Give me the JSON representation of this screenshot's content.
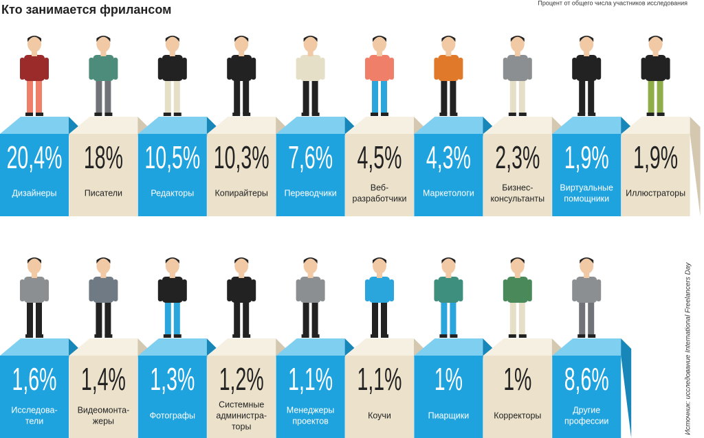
{
  "header": {
    "title": "Кто занимается фрилансом",
    "subtitle": "Процент от общего числа участников исследования"
  },
  "source": "Источник: исследование International Freelancers Day",
  "rows": [
    [
      {
        "value": "20,4%",
        "label": [
          "Дизайнеры"
        ]
      },
      {
        "value": "18%",
        "label": [
          "Писатели"
        ]
      },
      {
        "value": "10,5%",
        "label": [
          "Редакторы"
        ]
      },
      {
        "value": "10,3%",
        "label": [
          "Копирайтеры"
        ]
      },
      {
        "value": "7,6%",
        "label": [
          "Переводчики"
        ]
      },
      {
        "value": "4,5%",
        "label": [
          "Веб-",
          "разработчики"
        ]
      },
      {
        "value": "4,3%",
        "label": [
          "Маркетологи"
        ]
      },
      {
        "value": "2,3%",
        "label": [
          "Бизнес-",
          "консультанты"
        ]
      },
      {
        "value": "1,9%",
        "label": [
          "Виртуальные",
          "помощники"
        ]
      },
      {
        "value": "1,9%",
        "label": [
          "Иллюстраторы"
        ]
      }
    ],
    [
      {
        "value": "1,6%",
        "label": [
          "Исследова-",
          "тели"
        ]
      },
      {
        "value": "1,4%",
        "label": [
          "Видеомонта-",
          "жеры"
        ]
      },
      {
        "value": "1,3%",
        "label": [
          "Фотографы"
        ]
      },
      {
        "value": "1,2%",
        "label": [
          "Системные",
          "администра-",
          "торы"
        ]
      },
      {
        "value": "1,1%",
        "label": [
          "Менеджеры",
          "проектов"
        ]
      },
      {
        "value": "1,1%",
        "label": [
          "Коучи"
        ]
      },
      {
        "value": "1%",
        "label": [
          "Пиарщики"
        ]
      },
      {
        "value": "1%",
        "label": [
          "Корректоры"
        ]
      },
      {
        "value": "8,6%",
        "label": [
          "Другие",
          "профессии"
        ]
      }
    ]
  ]
}
